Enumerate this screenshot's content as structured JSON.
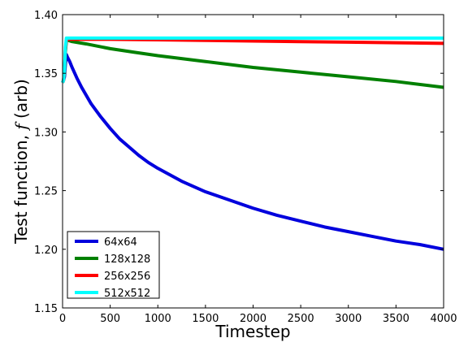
{
  "chart_data": {
    "type": "line",
    "title": "",
    "xlabel": "Timestep",
    "ylabel": "Test function, ",
    "ylabel_symbol": "f",
    "ylabel_unit": " (arb)",
    "xlim": [
      0,
      4000
    ],
    "ylim": [
      1.15,
      1.4
    ],
    "xticks": [
      0,
      500,
      1000,
      1500,
      2000,
      2500,
      3000,
      3500,
      4000
    ],
    "xtick_labels": [
      "0",
      "500",
      "1000",
      "1500",
      "2000",
      "2500",
      "3000",
      "3500",
      "4000"
    ],
    "yticks": [
      1.15,
      1.2,
      1.25,
      1.3,
      1.35,
      1.4
    ],
    "ytick_labels": [
      "1.15",
      "1.20",
      "1.25",
      "1.30",
      "1.35",
      "1.40"
    ],
    "grid": false,
    "legend_position": "lower-left",
    "series": [
      {
        "name": "64x64",
        "color": "#0000dd",
        "x": [
          0,
          10,
          20,
          30,
          40,
          50,
          75,
          100,
          150,
          200,
          300,
          400,
          500,
          600,
          700,
          800,
          900,
          1000,
          1250,
          1500,
          1750,
          2000,
          2250,
          2500,
          2750,
          3000,
          3250,
          3500,
          3750,
          4000
        ],
        "y": [
          1.342,
          1.344,
          1.347,
          1.358,
          1.366,
          1.364,
          1.36,
          1.355,
          1.346,
          1.338,
          1.324,
          1.313,
          1.303,
          1.294,
          1.287,
          1.28,
          1.274,
          1.269,
          1.258,
          1.249,
          1.242,
          1.235,
          1.229,
          1.224,
          1.219,
          1.215,
          1.211,
          1.207,
          1.204,
          1.2
        ]
      },
      {
        "name": "128x128",
        "color": "#008000",
        "x": [
          0,
          10,
          20,
          30,
          40,
          60,
          100,
          250,
          500,
          750,
          1000,
          1500,
          2000,
          2500,
          3000,
          3500,
          4000
        ],
        "y": [
          1.342,
          1.344,
          1.35,
          1.368,
          1.378,
          1.378,
          1.377,
          1.375,
          1.371,
          1.368,
          1.365,
          1.36,
          1.355,
          1.351,
          1.347,
          1.343,
          1.338
        ]
      },
      {
        "name": "256x256",
        "color": "#ff0000",
        "x": [
          0,
          10,
          20,
          30,
          40,
          60,
          100,
          500,
          1000,
          1500,
          2000,
          2500,
          3000,
          3500,
          4000
        ],
        "y": [
          1.342,
          1.344,
          1.352,
          1.37,
          1.378,
          1.379,
          1.379,
          1.379,
          1.3785,
          1.378,
          1.3775,
          1.377,
          1.3765,
          1.376,
          1.3755
        ]
      },
      {
        "name": "512x512",
        "color": "#00ffff",
        "x": [
          0,
          10,
          20,
          30,
          40,
          60,
          100,
          1000,
          2000,
          3000,
          4000
        ],
        "y": [
          1.342,
          1.344,
          1.352,
          1.372,
          1.38,
          1.38,
          1.38,
          1.38,
          1.38,
          1.38,
          1.38
        ]
      }
    ]
  }
}
